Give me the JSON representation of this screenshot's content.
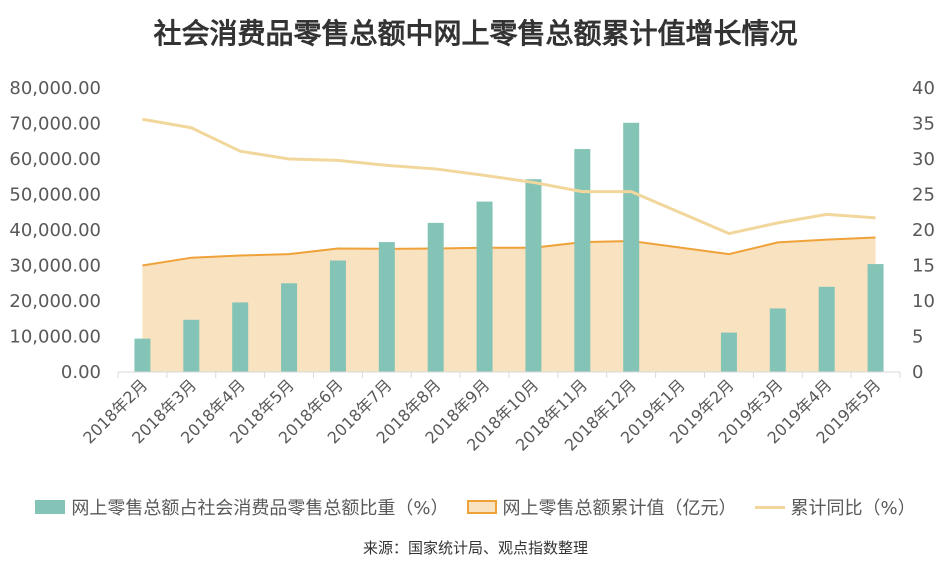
{
  "chart_data": {
    "title": "社会消费品零售总额中网上零售总额累计值增长情况",
    "type": "bar",
    "categories": [
      "2018年2月",
      "2018年3月",
      "2018年4月",
      "2018年5月",
      "2018年6月",
      "2018年7月",
      "2018年8月",
      "2018年9月",
      "2018年10月",
      "2018年11月",
      "2018年12月",
      "2019年1月",
      "2019年2月",
      "2019年3月",
      "2019年4月",
      "2019年5月"
    ],
    "y_left": {
      "ylim": [
        0,
        80000
      ],
      "ticks": [
        "0.00",
        "10,000.00",
        "20,000.00",
        "30,000.00",
        "40,000.00",
        "50,000.00",
        "60,000.00",
        "70,000.00",
        "80,000.00"
      ]
    },
    "y_right": {
      "ylim": [
        0,
        40
      ],
      "ticks": [
        "0",
        "5",
        "10",
        "15",
        "20",
        "25",
        "30",
        "35",
        "40"
      ]
    },
    "series": [
      {
        "name": "网上零售总额占社会消费品零售总额比重（%）",
        "kind": "bar",
        "axis": "left",
        "color": "#84c4b6",
        "values": [
          9400,
          14700,
          19600,
          25000,
          31400,
          36600,
          42000,
          48000,
          54300,
          62800,
          70200,
          null,
          11100,
          17900,
          24000,
          30400
        ]
      },
      {
        "name": "网上零售总额累计值（亿元）",
        "kind": "area",
        "axis": "left",
        "color": "#f0a23a",
        "fill": "#f8e2c0",
        "values": [
          30000,
          32200,
          32800,
          33200,
          34800,
          34700,
          34800,
          35000,
          35000,
          36600,
          36900,
          null,
          33200,
          36500,
          37300,
          37900
        ]
      },
      {
        "name": "累计同比（%）",
        "kind": "line",
        "axis": "right",
        "color": "#f2d79c",
        "values": [
          35.6,
          34.4,
          31.1,
          30.0,
          29.8,
          29.1,
          28.6,
          27.7,
          26.7,
          25.4,
          25.4,
          null,
          19.5,
          21.0,
          22.2,
          21.7
        ]
      }
    ],
    "legend_position": "bottom",
    "grid": false
  },
  "source": "来源：国家统计局、观点指数整理"
}
